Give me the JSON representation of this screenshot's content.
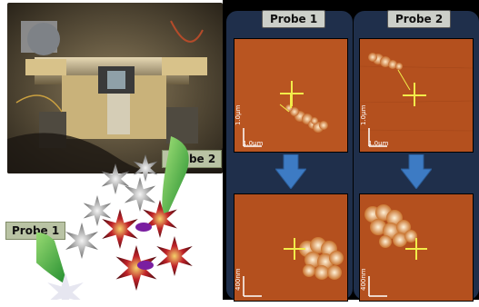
{
  "figure": {
    "photo_label_probe2": "Probe 2",
    "photo_label_probe1": "Probe 1",
    "columns": [
      {
        "header": "Probe 1"
      },
      {
        "header": "Probe 2"
      }
    ],
    "scale_bars": {
      "top_left_vertical": "1.0μm",
      "top_left_horizontal": "1.0μm",
      "top_right_vertical": "1.0μm",
      "top_right_horizontal": "1.0μm",
      "bottom_left_vertical": "400nm",
      "bottom_right_vertical": "400nm"
    },
    "colors": {
      "afm_bg": "#b4501e",
      "arrow_blue": "#3d7bc4",
      "crosshair": "#f2ec4a"
    }
  }
}
